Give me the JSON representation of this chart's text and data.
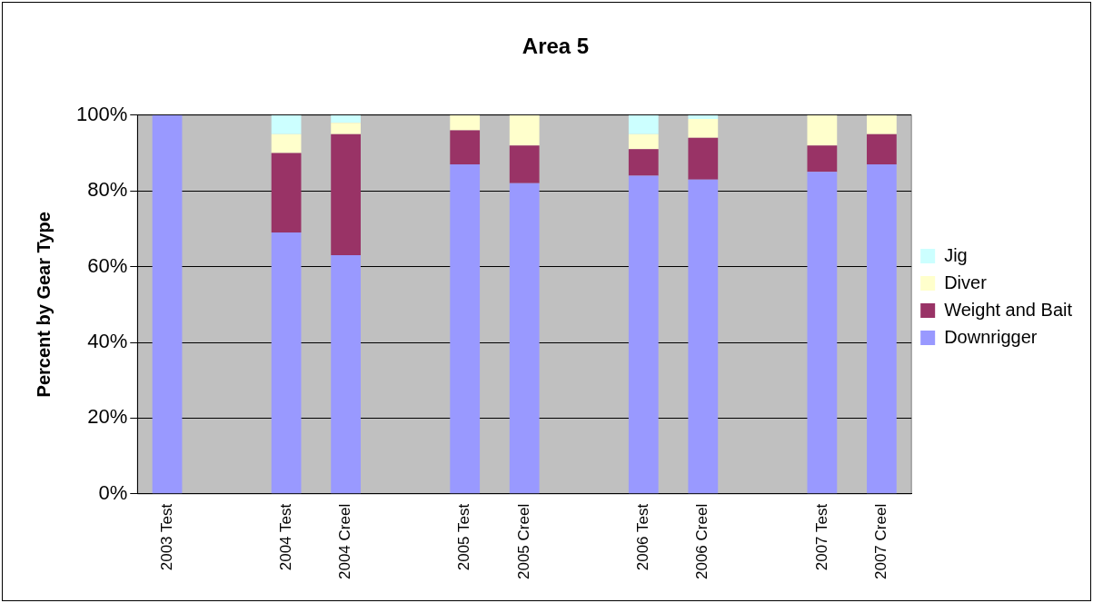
{
  "chart_data": {
    "type": "bar",
    "title": "Area 5",
    "ylabel": "Percent by Gear Type",
    "categories": [
      "2003 Test",
      null,
      "2004 Test",
      "2004 Creel",
      null,
      "2005 Test",
      "2005 Creel",
      null,
      "2006 Test",
      "2006 Creel",
      null,
      "2007 Test",
      "2007 Creel"
    ],
    "series": [
      {
        "name": "Downrigger",
        "color": "#9999ff",
        "values": [
          100,
          null,
          69,
          63,
          null,
          87,
          82,
          null,
          84,
          83,
          null,
          85,
          87
        ]
      },
      {
        "name": "Weight and Bait",
        "color": "#993366",
        "values": [
          0,
          null,
          21,
          32,
          null,
          9,
          10,
          null,
          7,
          11,
          null,
          7,
          8
        ]
      },
      {
        "name": "Diver",
        "color": "#ffffcc",
        "values": [
          0,
          null,
          5,
          3,
          null,
          4,
          8,
          null,
          4,
          5,
          null,
          8,
          5
        ]
      },
      {
        "name": "Jig",
        "color": "#ccffff",
        "values": [
          0,
          null,
          5,
          2,
          null,
          0,
          0,
          null,
          5,
          1,
          null,
          0,
          0
        ]
      }
    ],
    "stacked": true,
    "ylim": [
      0,
      100
    ],
    "yticks": [
      {
        "value": 0,
        "label": "0%"
      },
      {
        "value": 20,
        "label": "20%"
      },
      {
        "value": 40,
        "label": "40%"
      },
      {
        "value": 60,
        "label": "60%"
      },
      {
        "value": 80,
        "label": "80%"
      },
      {
        "value": 100,
        "label": "100%"
      }
    ],
    "grid": "y",
    "legend": "right"
  }
}
